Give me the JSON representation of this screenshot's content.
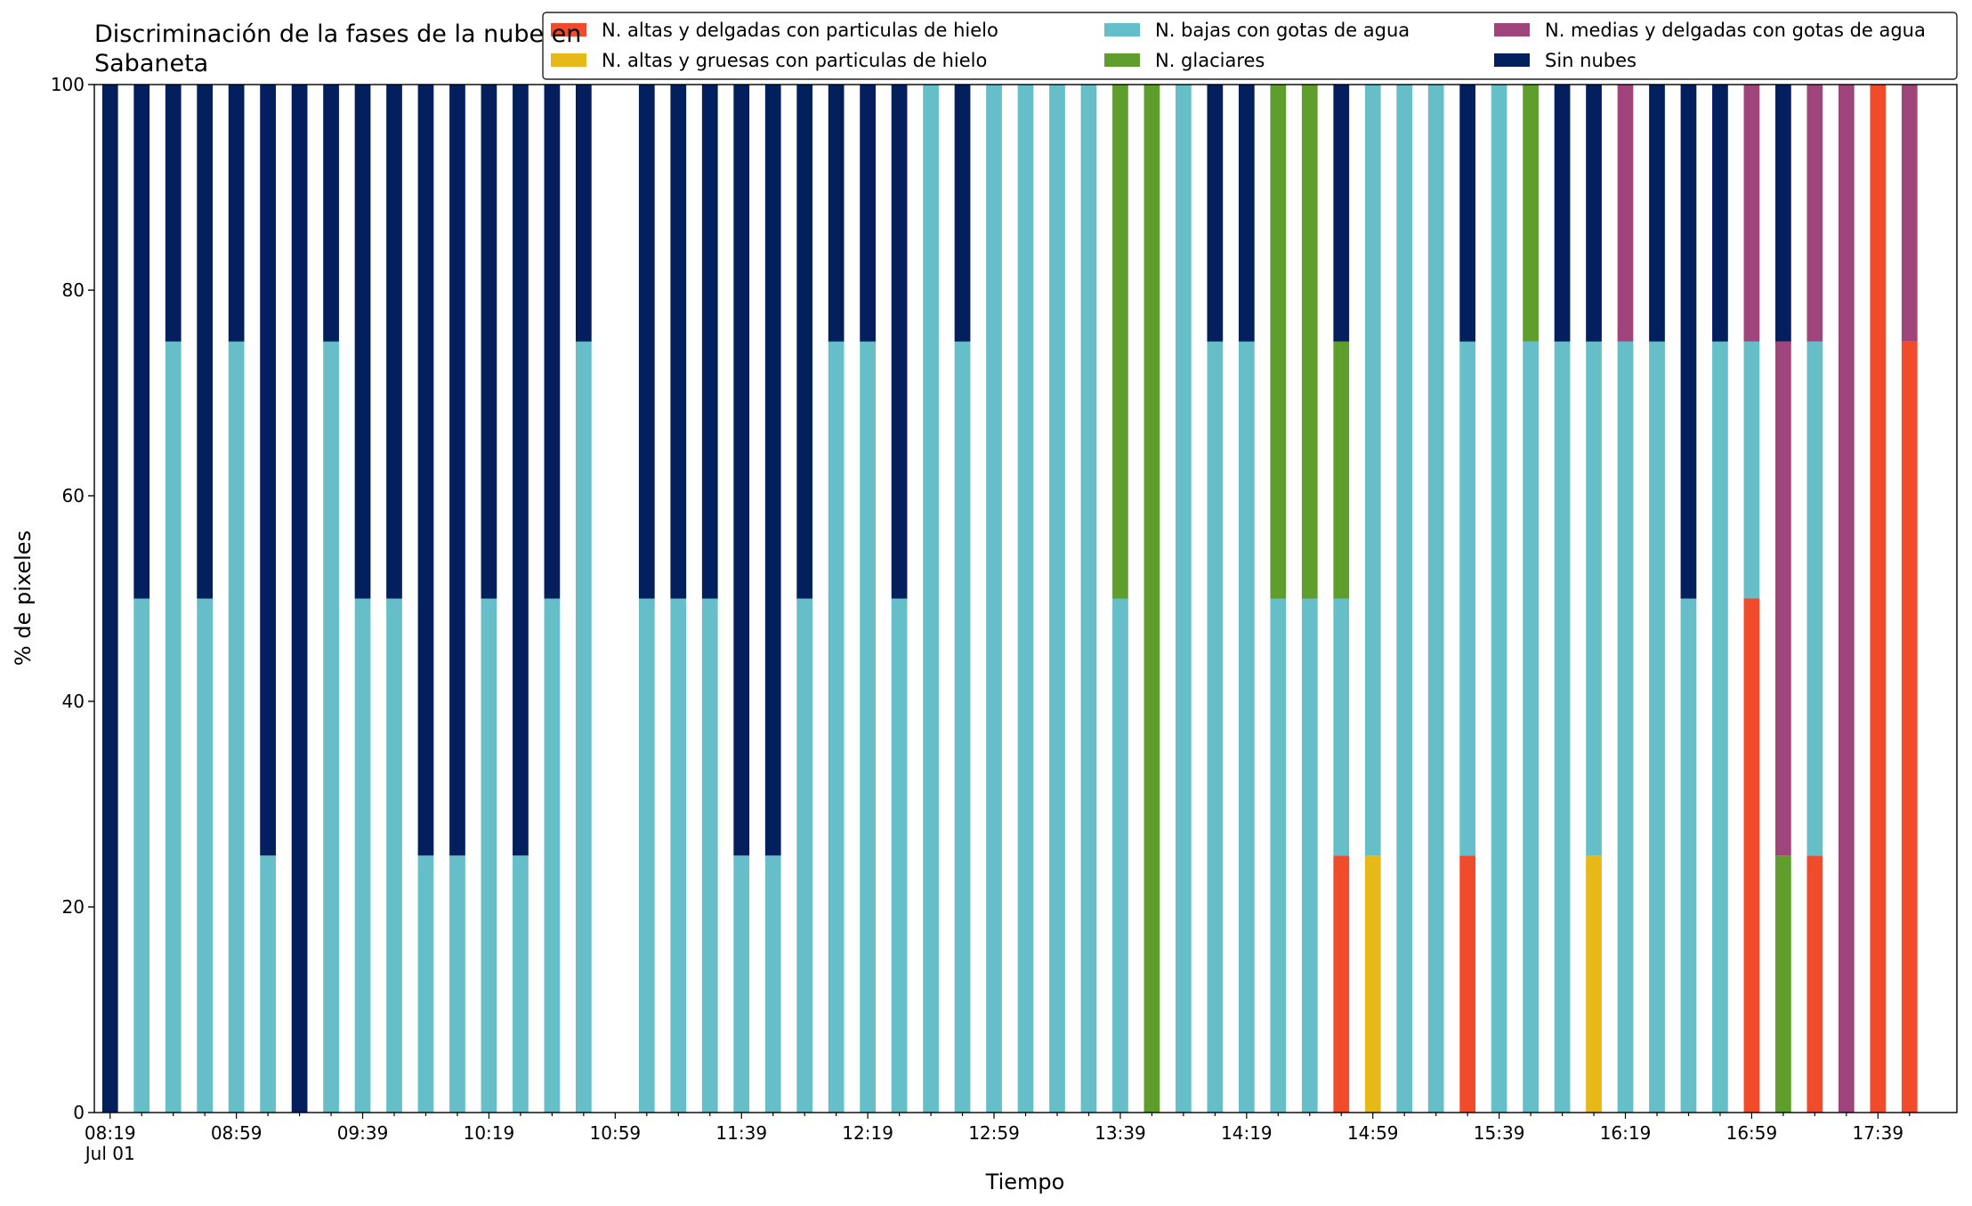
{
  "chart_data": {
    "type": "stacked_bar",
    "title": "Discriminación de la fases de la nube en Sabaneta",
    "x_label": "Tiempo",
    "y_label": "% de pixeles",
    "x_sublabel": "Jul 01",
    "categories": [
      "08:19",
      null,
      null,
      null,
      "08:59",
      null,
      null,
      null,
      "09:39",
      null,
      null,
      null,
      "10:19",
      null,
      null,
      null,
      "10:59",
      null,
      null,
      null,
      "11:39",
      null,
      null,
      null,
      "12:19",
      null,
      null,
      null,
      "12:59",
      null,
      null,
      null,
      "13:39",
      null,
      null,
      null,
      "14:19",
      null,
      null,
      null,
      "14:59",
      null,
      null,
      null,
      "15:39",
      null,
      null,
      null,
      "16:19",
      null,
      null,
      null,
      "16:59",
      null,
      null,
      null,
      "17:39",
      null
    ],
    "ylim": [
      0,
      100
    ],
    "yticks": [
      0,
      20,
      40,
      60,
      80,
      100
    ],
    "grid": false,
    "series": [
      {
        "name": "N. altas y delgadas con particulas de hielo",
        "color": "#f04b2b",
        "values": [
          0,
          0,
          0,
          0,
          0,
          0,
          0,
          0,
          0,
          0,
          0,
          0,
          0,
          0,
          0,
          0,
          null,
          0,
          0,
          0,
          0,
          0,
          0,
          0,
          0,
          0,
          0,
          0,
          0,
          0,
          0,
          0,
          0,
          0,
          0,
          0,
          0,
          0,
          0,
          25,
          0,
          0,
          0,
          25,
          0,
          0,
          0,
          0,
          0,
          0,
          0,
          0,
          50,
          0,
          25,
          0,
          100,
          75
        ]
      },
      {
        "name": "N. altas y gruesas con particulas de hielo",
        "color": "#e6b818",
        "values": [
          0,
          0,
          0,
          0,
          0,
          0,
          0,
          0,
          0,
          0,
          0,
          0,
          0,
          0,
          0,
          0,
          null,
          0,
          0,
          0,
          0,
          0,
          0,
          0,
          0,
          0,
          0,
          0,
          0,
          0,
          0,
          0,
          0,
          0,
          0,
          0,
          0,
          0,
          0,
          0,
          25,
          0,
          0,
          0,
          0,
          0,
          0,
          25,
          0,
          0,
          0,
          0,
          0,
          0,
          0,
          0,
          0,
          0
        ]
      },
      {
        "name": "N. bajas con gotas de agua",
        "color": "#66bec9",
        "values": [
          0,
          50,
          75,
          50,
          75,
          25,
          0,
          75,
          50,
          50,
          25,
          25,
          50,
          25,
          50,
          75,
          null,
          50,
          50,
          50,
          25,
          25,
          50,
          75,
          75,
          50,
          100,
          75,
          100,
          100,
          100,
          100,
          50,
          0,
          100,
          75,
          75,
          50,
          50,
          25,
          75,
          100,
          100,
          50,
          100,
          75,
          75,
          50,
          75,
          75,
          50,
          75,
          25,
          0,
          50,
          0,
          0,
          0
        ]
      },
      {
        "name": "N. glaciares",
        "color": "#5f9e2d",
        "values": [
          0,
          0,
          0,
          0,
          0,
          0,
          0,
          0,
          0,
          0,
          0,
          0,
          0,
          0,
          0,
          0,
          null,
          0,
          0,
          0,
          0,
          0,
          0,
          0,
          0,
          0,
          0,
          0,
          0,
          0,
          0,
          0,
          50,
          100,
          0,
          0,
          0,
          50,
          50,
          25,
          0,
          0,
          0,
          0,
          0,
          25,
          0,
          0,
          0,
          0,
          0,
          0,
          0,
          25,
          0,
          0,
          0,
          0
        ]
      },
      {
        "name": "N. medias y delgadas con gotas de agua",
        "color": "#a0457c",
        "values": [
          0,
          0,
          0,
          0,
          0,
          0,
          0,
          0,
          0,
          0,
          0,
          0,
          0,
          0,
          0,
          0,
          null,
          0,
          0,
          0,
          0,
          0,
          0,
          0,
          0,
          0,
          0,
          0,
          0,
          0,
          0,
          0,
          0,
          0,
          0,
          0,
          0,
          0,
          0,
          0,
          0,
          0,
          0,
          0,
          0,
          0,
          0,
          0,
          25,
          0,
          0,
          0,
          25,
          50,
          25,
          100,
          0,
          25
        ]
      },
      {
        "name": "Sin nubes",
        "color": "#031f5e",
        "values": [
          100,
          50,
          25,
          50,
          25,
          75,
          100,
          25,
          50,
          50,
          75,
          75,
          50,
          75,
          50,
          25,
          null,
          50,
          50,
          50,
          75,
          75,
          50,
          25,
          25,
          50,
          0,
          25,
          0,
          0,
          0,
          0,
          0,
          0,
          0,
          25,
          25,
          0,
          0,
          25,
          0,
          0,
          0,
          25,
          0,
          0,
          25,
          25,
          0,
          25,
          50,
          25,
          0,
          25,
          0,
          0,
          0,
          0
        ]
      }
    ]
  }
}
